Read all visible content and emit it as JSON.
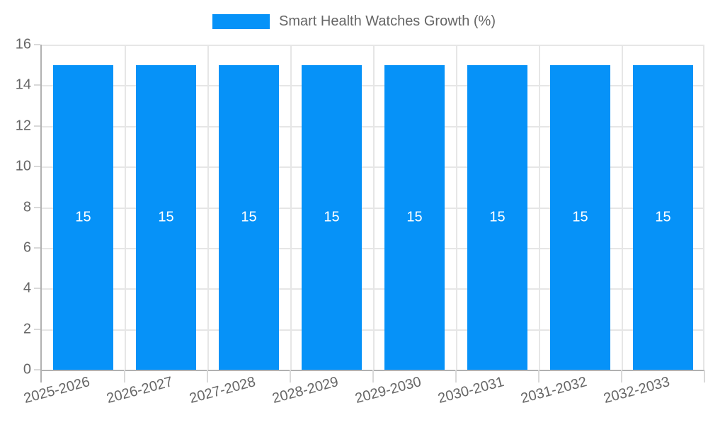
{
  "legend": {
    "label": "Smart Health Watches Growth (%)"
  },
  "colors": {
    "bar": "#0692f8",
    "grid": "#e6e6e6",
    "axis_line": "#b1b1b1",
    "tick_text": "#666666",
    "bar_value_text": "#ffffff",
    "background": "#ffffff"
  },
  "chart_data": {
    "type": "bar",
    "title": "Smart Health Watches Growth (%)",
    "categories": [
      "2025-2026",
      "2026-2027",
      "2027-2028",
      "2028-2029",
      "2029-2030",
      "2030-2031",
      "2031-2032",
      "2032-2033"
    ],
    "values": [
      15,
      15,
      15,
      15,
      15,
      15,
      15,
      15
    ],
    "xlabel": "",
    "ylabel": "",
    "ylim": [
      0,
      16
    ],
    "yticks": [
      0,
      2,
      4,
      6,
      8,
      10,
      12,
      14,
      16
    ],
    "grid": true,
    "legend_position": "top",
    "value_labels_inside_bars": true
  }
}
